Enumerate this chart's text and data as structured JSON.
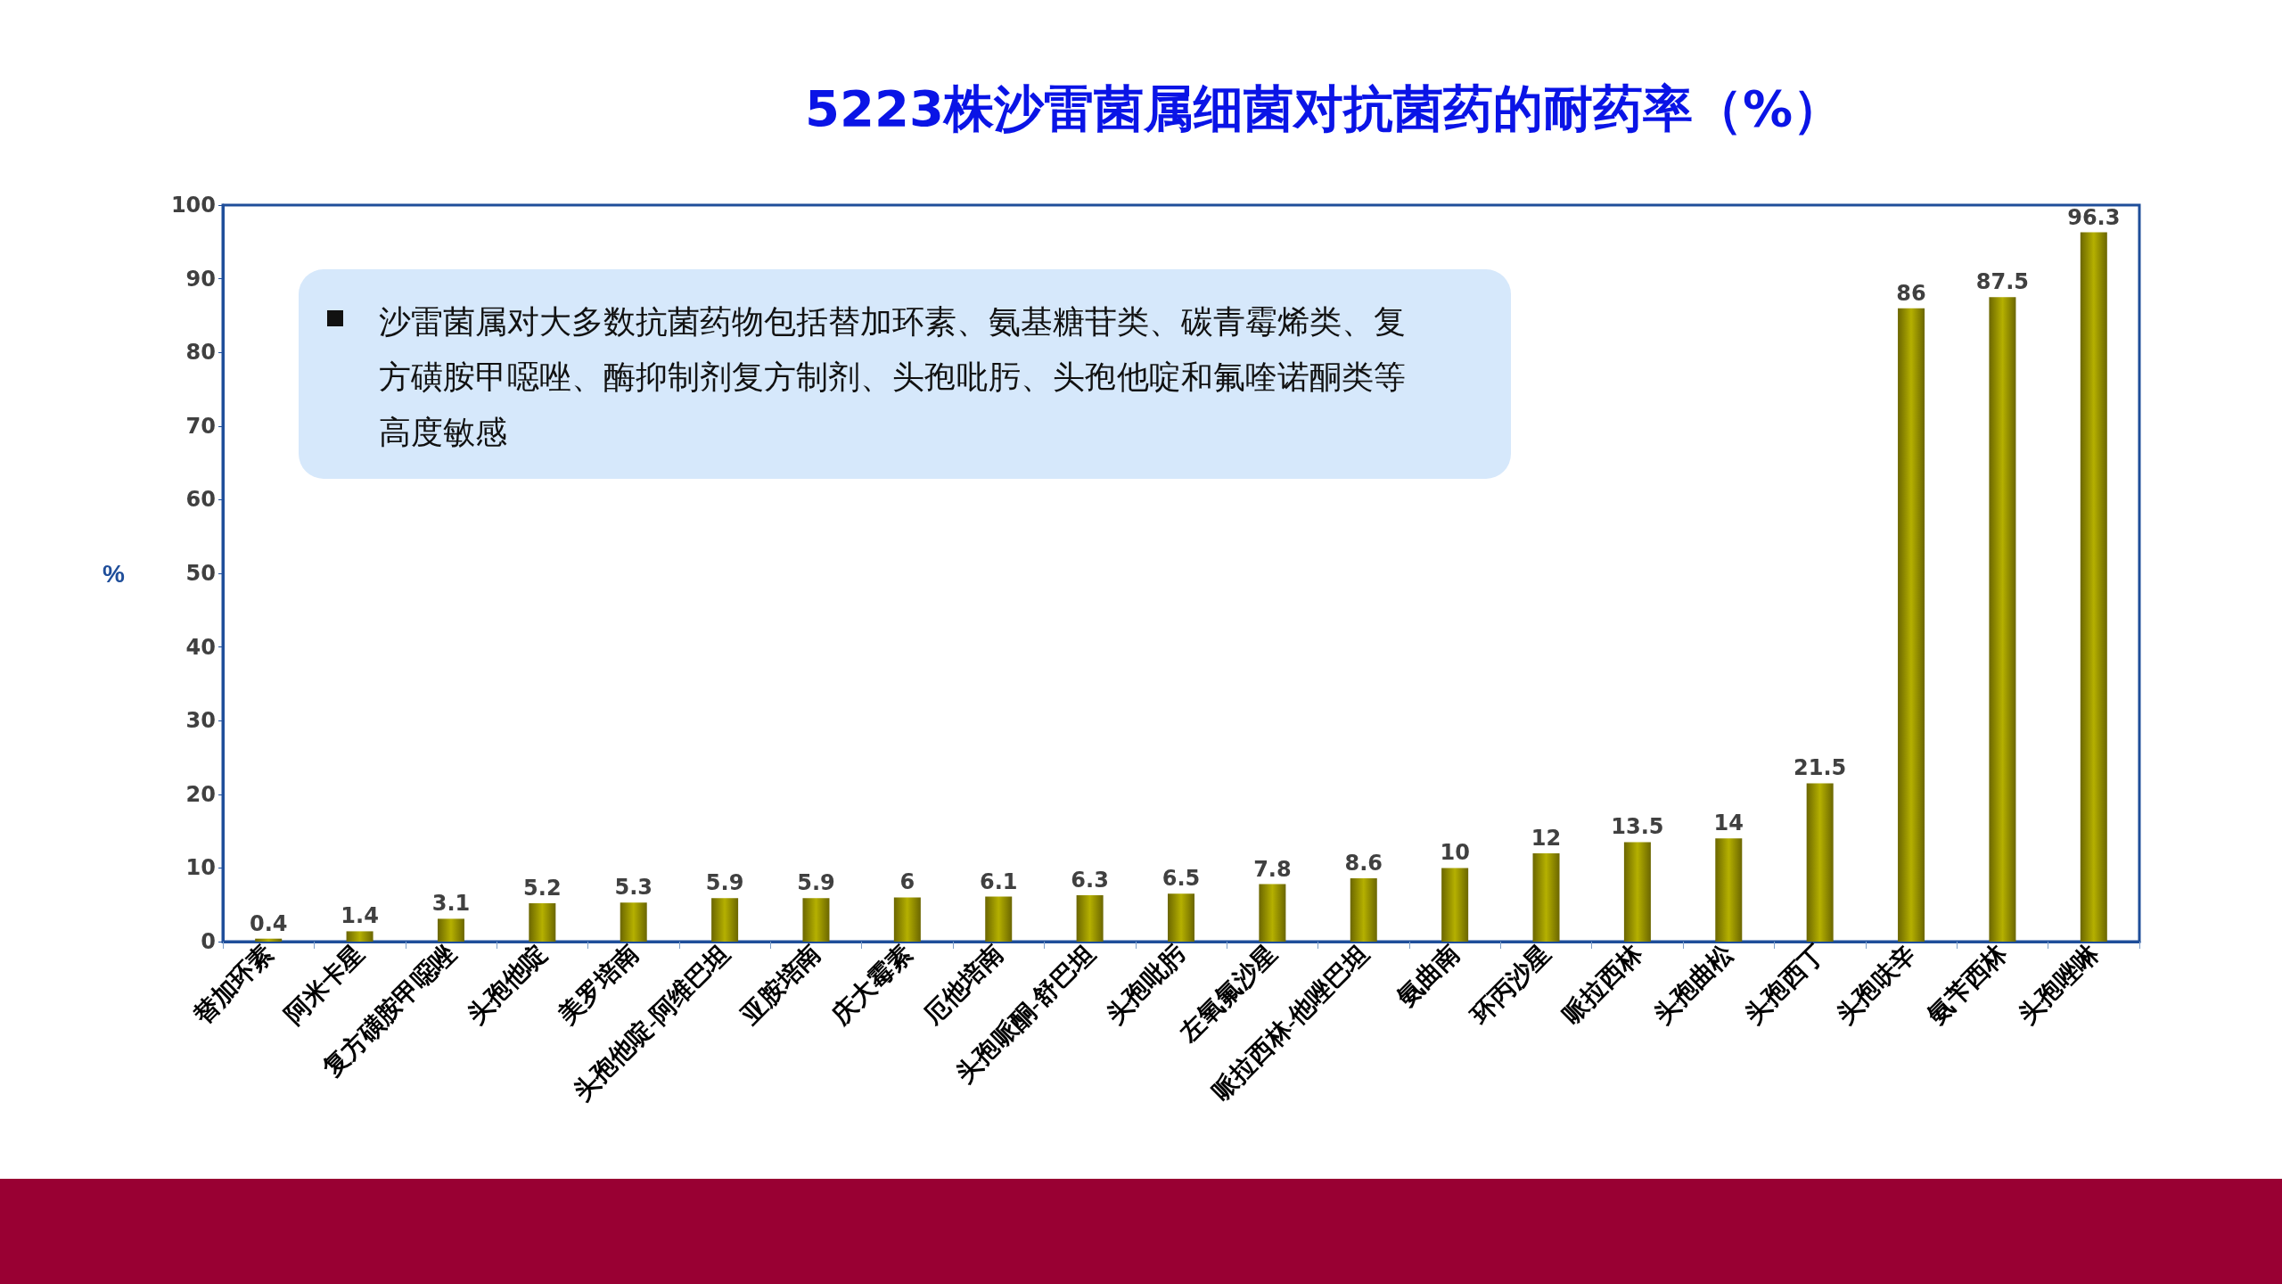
{
  "chart_data": {
    "type": "bar",
    "title": "5223株沙雷菌属细菌对抗菌药的耐药率（%）",
    "ylabel": "%",
    "categories": [
      "替加环素",
      "阿米卡星",
      "复方磺胺甲噁唑",
      "头孢他啶",
      "美罗培南",
      "头孢他啶-阿维巴坦",
      "亚胺培南",
      "庆大霉素",
      "厄他培南",
      "头孢哌酮-舒巴坦",
      "头孢吡肟",
      "左氧氟沙星",
      "哌拉西林-他唑巴坦",
      "氨曲南",
      "环丙沙星",
      "哌拉西林",
      "头孢曲松",
      "头孢西丁",
      "头孢呋辛",
      "氨苄西林",
      "头孢唑啉"
    ],
    "values": [
      0.4,
      1.4,
      3.1,
      5.2,
      5.3,
      5.9,
      5.9,
      6,
      6.1,
      6.3,
      6.5,
      7.8,
      8.6,
      10,
      12,
      13.5,
      14,
      21.5,
      86,
      87.5,
      96.3
    ],
    "color": "#b5b000",
    "ylim": [
      0,
      100
    ],
    "yticks": [
      0,
      10,
      20,
      30,
      40,
      50,
      60,
      70,
      80,
      90,
      100
    ],
    "grid": false,
    "data_labels": true,
    "annotations": [
      "沙雷菌属对大多数抗菌药物包括替加环素、氨基糖苷类、碳青霉烯类、复方磺胺甲噁唑、酶抑制剂复方制剂、头孢吡肟、头孢他啶和氟喹诺酮类等高度敏感"
    ]
  }
}
